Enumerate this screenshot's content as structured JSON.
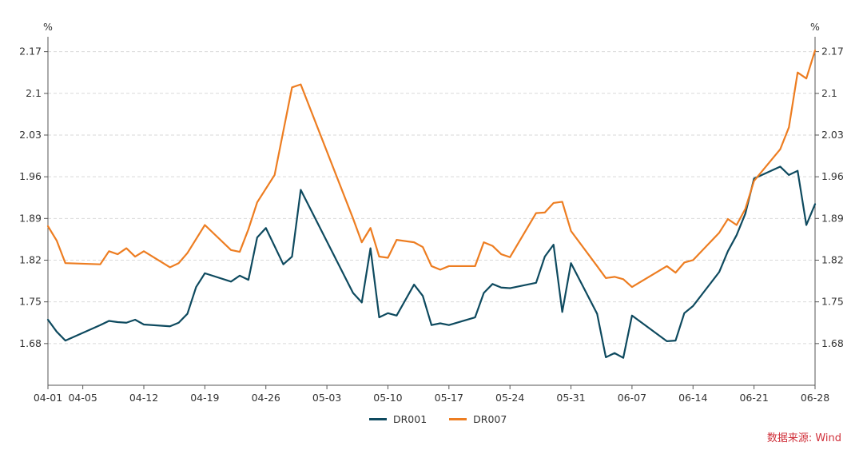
{
  "chart_data": {
    "type": "line",
    "title": "",
    "unit_left": "%",
    "unit_right": "%",
    "ylim": [
      1.61,
      2.195
    ],
    "y_ticks": [
      1.68,
      1.75,
      1.82,
      1.89,
      1.96,
      2.03,
      2.1,
      2.17
    ],
    "y_tick_labels": [
      "1.68",
      "1.75",
      "1.82",
      "1.89",
      "1.96",
      "2.03",
      "2.1",
      "2.17"
    ],
    "x_range": [
      0,
      88
    ],
    "x_ticks": [
      0,
      4,
      11,
      18,
      25,
      32,
      39,
      46,
      53,
      60,
      67,
      74,
      81,
      88
    ],
    "x_tick_labels": [
      "04-01",
      "04-05",
      "04-12",
      "04-19",
      "04-26",
      "05-03",
      "05-10",
      "05-17",
      "05-24",
      "05-31",
      "06-07",
      "06-14",
      "06-21",
      "06-28"
    ],
    "series": [
      {
        "name": "DR001",
        "color": "#0e4a5f",
        "points": [
          [
            0,
            1.72
          ],
          [
            1,
            1.7
          ],
          [
            2,
            1.685
          ],
          [
            6,
            1.711
          ],
          [
            7,
            1.718
          ],
          [
            8,
            1.716
          ],
          [
            9,
            1.715
          ],
          [
            10,
            1.72
          ],
          [
            11,
            1.712
          ],
          [
            14,
            1.709
          ],
          [
            15,
            1.715
          ],
          [
            16,
            1.73
          ],
          [
            17,
            1.775
          ],
          [
            18,
            1.798
          ],
          [
            21,
            1.784
          ],
          [
            22,
            1.794
          ],
          [
            23,
            1.787
          ],
          [
            24,
            1.858
          ],
          [
            25,
            1.874
          ],
          [
            27,
            1.813
          ],
          [
            28,
            1.826
          ],
          [
            29,
            1.938
          ],
          [
            35,
            1.765
          ],
          [
            36,
            1.749
          ],
          [
            37,
            1.84
          ],
          [
            38,
            1.724
          ],
          [
            39,
            1.731
          ],
          [
            40,
            1.727
          ],
          [
            42,
            1.779
          ],
          [
            43,
            1.76
          ],
          [
            44,
            1.711
          ],
          [
            45,
            1.714
          ],
          [
            46,
            1.711
          ],
          [
            49,
            1.724
          ],
          [
            50,
            1.765
          ],
          [
            51,
            1.78
          ],
          [
            52,
            1.774
          ],
          [
            53,
            1.773
          ],
          [
            56,
            1.782
          ],
          [
            57,
            1.826
          ],
          [
            58,
            1.846
          ],
          [
            59,
            1.733
          ],
          [
            60,
            1.815
          ],
          [
            63,
            1.73
          ],
          [
            64,
            1.657
          ],
          [
            65,
            1.664
          ],
          [
            66,
            1.656
          ],
          [
            67,
            1.727
          ],
          [
            71,
            1.684
          ],
          [
            72,
            1.685
          ],
          [
            73,
            1.731
          ],
          [
            74,
            1.743
          ],
          [
            77,
            1.8
          ],
          [
            78,
            1.835
          ],
          [
            79,
            1.862
          ],
          [
            80,
            1.898
          ],
          [
            81,
            1.957
          ],
          [
            84,
            1.977
          ],
          [
            85,
            1.963
          ],
          [
            86,
            1.97
          ],
          [
            87,
            1.879
          ],
          [
            88,
            1.914
          ]
        ]
      },
      {
        "name": "DR007",
        "color": "#ed7d21",
        "points": [
          [
            0,
            1.877
          ],
          [
            1,
            1.853
          ],
          [
            2,
            1.815
          ],
          [
            6,
            1.813
          ],
          [
            7,
            1.835
          ],
          [
            8,
            1.83
          ],
          [
            9,
            1.84
          ],
          [
            10,
            1.826
          ],
          [
            11,
            1.835
          ],
          [
            14,
            1.808
          ],
          [
            15,
            1.815
          ],
          [
            16,
            1.832
          ],
          [
            18,
            1.879
          ],
          [
            21,
            1.837
          ],
          [
            22,
            1.834
          ],
          [
            23,
            1.872
          ],
          [
            24,
            1.917
          ],
          [
            26,
            1.963
          ],
          [
            28,
            2.11
          ],
          [
            29,
            2.115
          ],
          [
            35,
            1.89
          ],
          [
            36,
            1.85
          ],
          [
            37,
            1.874
          ],
          [
            38,
            1.826
          ],
          [
            39,
            1.824
          ],
          [
            40,
            1.854
          ],
          [
            42,
            1.85
          ],
          [
            43,
            1.842
          ],
          [
            44,
            1.81
          ],
          [
            45,
            1.804
          ],
          [
            46,
            1.81
          ],
          [
            49,
            1.81
          ],
          [
            50,
            1.85
          ],
          [
            51,
            1.844
          ],
          [
            52,
            1.83
          ],
          [
            53,
            1.825
          ],
          [
            56,
            1.899
          ],
          [
            57,
            1.9
          ],
          [
            58,
            1.916
          ],
          [
            59,
            1.918
          ],
          [
            60,
            1.869
          ],
          [
            63,
            1.81
          ],
          [
            64,
            1.79
          ],
          [
            65,
            1.792
          ],
          [
            66,
            1.788
          ],
          [
            67,
            1.775
          ],
          [
            71,
            1.81
          ],
          [
            72,
            1.799
          ],
          [
            73,
            1.816
          ],
          [
            74,
            1.82
          ],
          [
            77,
            1.866
          ],
          [
            78,
            1.889
          ],
          [
            79,
            1.879
          ],
          [
            80,
            1.906
          ],
          [
            81,
            1.953
          ],
          [
            84,
            2.006
          ],
          [
            85,
            2.043
          ],
          [
            86,
            2.135
          ],
          [
            87,
            2.125
          ],
          [
            88,
            2.172
          ]
        ]
      }
    ]
  },
  "legend": {
    "items": [
      {
        "label": "DR001",
        "color": "#0e4a5f"
      },
      {
        "label": "DR007",
        "color": "#ed7d21"
      }
    ]
  },
  "source": "数据来源: Wind"
}
